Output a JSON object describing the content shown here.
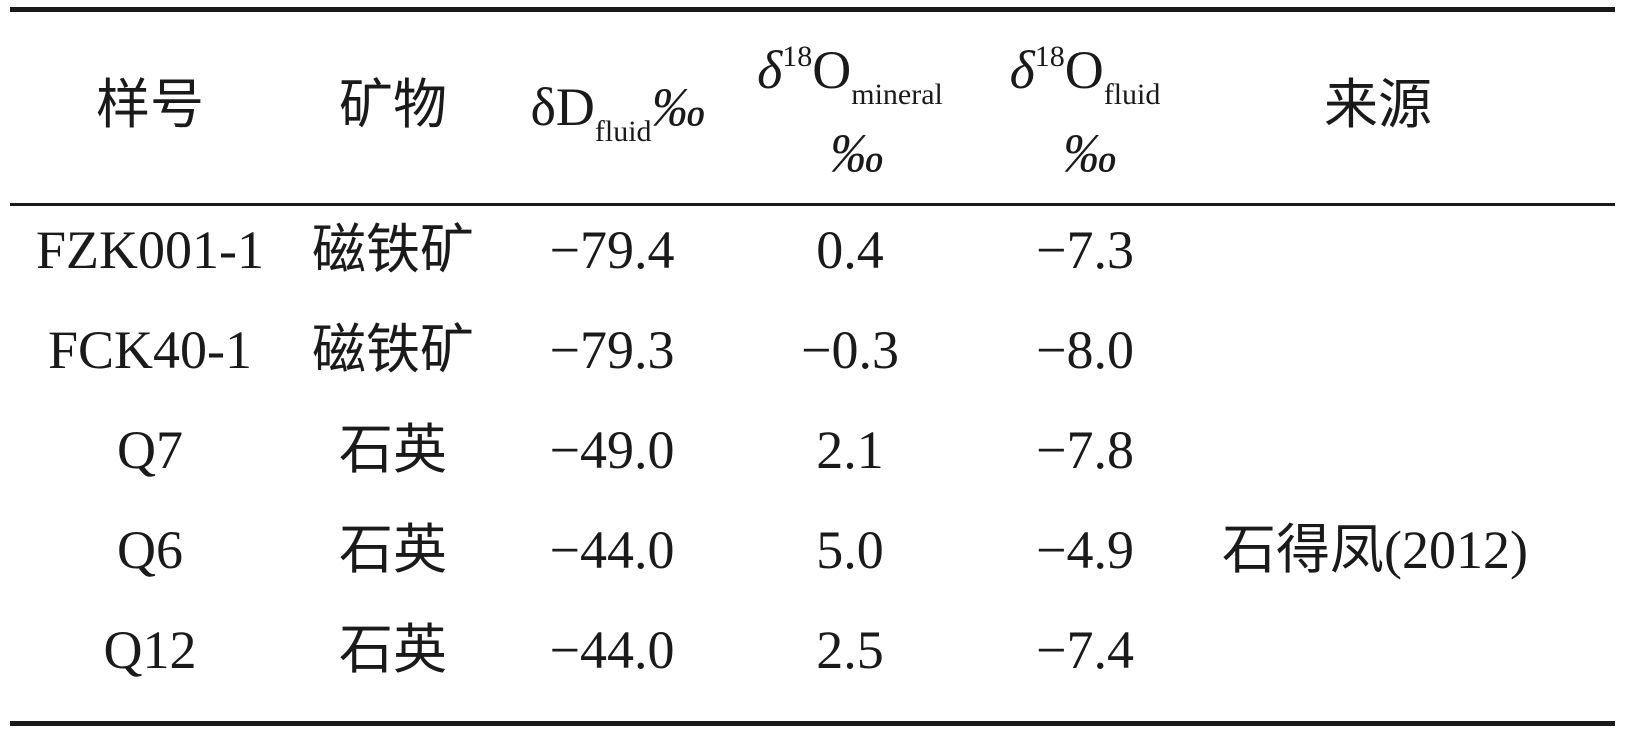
{
  "table": {
    "headers": {
      "sample": "样号",
      "mineral": "矿物",
      "dD": {
        "symbol": "δD",
        "subscript": "fluid",
        "unit": "‰"
      },
      "d18O_mineral": {
        "symbol": "δ",
        "superscript": "18",
        "element": "O",
        "subscript": "mineral",
        "unit": "‰"
      },
      "d18O_fluid": {
        "symbol": "δ",
        "superscript": "18",
        "element": "O",
        "subscript": "fluid",
        "unit": "‰"
      },
      "source": "来源"
    },
    "rows": [
      {
        "sample": "FZK001-1",
        "mineral": "磁铁矿",
        "dD": "−79.4",
        "d18O_mineral": "0.4",
        "d18O_fluid": "−7.3"
      },
      {
        "sample": "FCK40-1",
        "mineral": "磁铁矿",
        "dD": "−79.3",
        "d18O_mineral": "−0.3",
        "d18O_fluid": "−8.0"
      },
      {
        "sample": "Q7",
        "mineral": "石英",
        "dD": "−49.0",
        "d18O_mineral": "2.1",
        "d18O_fluid": "−7.8"
      },
      {
        "sample": "Q6",
        "mineral": "石英",
        "dD": "−44.0",
        "d18O_mineral": "5.0",
        "d18O_fluid": "−4.9"
      },
      {
        "sample": "Q12",
        "mineral": "石英",
        "dD": "−44.0",
        "d18O_mineral": "2.5",
        "d18O_fluid": "−7.4"
      }
    ],
    "source_text": "石得凤(2012)"
  }
}
